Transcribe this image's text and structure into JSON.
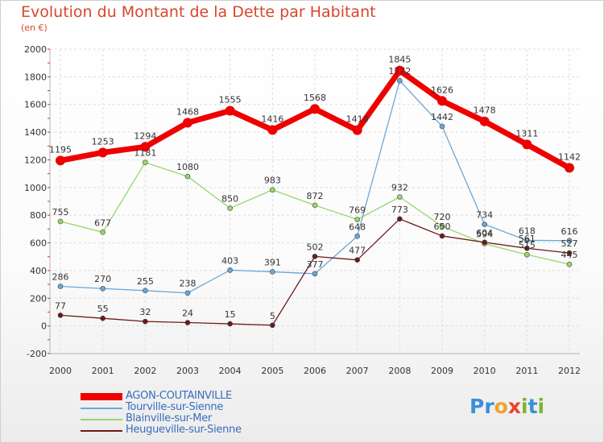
{
  "title": "Evolution du Montant de la Dette par Habitant",
  "subtitle": "(en €)",
  "logo": {
    "text": "Proxiti",
    "letters": [
      "P",
      "r",
      "o",
      "x",
      "i",
      "t",
      "i"
    ],
    "colors": [
      "#3a8fd9",
      "#3a8fd9",
      "#f0a32a",
      "#e8452c",
      "#7ab52f",
      "#3a8fd9",
      "#7ab52f"
    ]
  },
  "chart_data": {
    "type": "line",
    "title": "Evolution du Montant de la Dette par Habitant",
    "ylabel": "(en €)",
    "ylim": [
      -200,
      2000
    ],
    "yticks": [
      -200,
      0,
      200,
      400,
      600,
      800,
      1000,
      1200,
      1400,
      1600,
      1800,
      2000
    ],
    "grid": true,
    "legend_position": "bottom-left",
    "x": [
      "2000",
      "2001",
      "2002",
      "2003",
      "2004",
      "2005",
      "2006",
      "2007",
      "2008",
      "2009",
      "2010",
      "2011",
      "2012"
    ],
    "series": [
      {
        "name": "AGON-COUTAINVILLE",
        "color": "#ee0000",
        "values": [
          1195,
          1253,
          1294,
          1468,
          1555,
          1416,
          1568,
          1414,
          1845,
          1626,
          1478,
          1311,
          1142
        ]
      },
      {
        "name": "Tourville-sur-Sienne",
        "color": "#6aa8d8",
        "values": [
          286,
          270,
          255,
          238,
          403,
          391,
          377,
          648,
          1772,
          1442,
          734,
          618,
          616
        ]
      },
      {
        "name": "Blainville-sur-Mer",
        "color": "#99d66b",
        "values": [
          755,
          677,
          1181,
          1080,
          850,
          983,
          872,
          769,
          932,
          720,
          594,
          515,
          445
        ]
      },
      {
        "name": "Heugueville-sur-Sienne",
        "color": "#6b1a1a",
        "values": [
          77,
          55,
          32,
          24,
          15,
          5,
          502,
          477,
          773,
          650,
          604,
          561,
          527
        ]
      }
    ]
  }
}
